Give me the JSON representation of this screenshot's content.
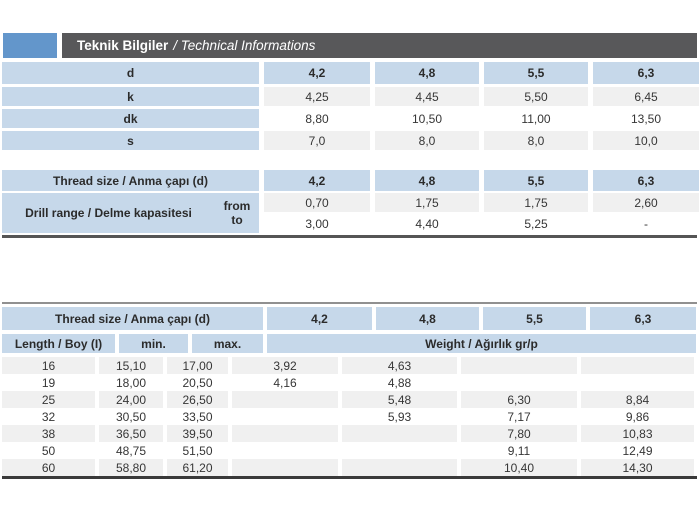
{
  "title": {
    "bold": "Teknik Bilgiler",
    "italic": "/ Technical Informations"
  },
  "colors": {
    "accent_blue": "#6396cb",
    "title_bar_gray": "#58585a",
    "cell_blue": "#c6d8ea",
    "stripe_gray": "#f0f0f0"
  },
  "spec_table": {
    "rows": [
      {
        "label": "d",
        "values": [
          "4,2",
          "4,8",
          "5,5",
          "6,3"
        ],
        "style": "header"
      },
      {
        "label": "k",
        "values": [
          "4,25",
          "4,45",
          "5,50",
          "6,45"
        ],
        "style": "gray"
      },
      {
        "label": "dk",
        "values": [
          "8,80",
          "10,50",
          "11,00",
          "13,50"
        ],
        "style": "white"
      },
      {
        "label": "s",
        "values": [
          "7,0",
          "8,0",
          "8,0",
          "10,0"
        ],
        "style": "gray"
      }
    ]
  },
  "drill_table": {
    "header_label": "Thread size / Anma çapı (d)",
    "header_values": [
      "4,2",
      "4,8",
      "5,5",
      "6,3"
    ],
    "row_label": "Drill range / Delme kapasitesi",
    "from_label": "from",
    "to_label": "to",
    "from_values": [
      "0,70",
      "1,75",
      "1,75",
      "2,60"
    ],
    "to_values": [
      "3,00",
      "4,40",
      "5,25",
      "-"
    ]
  },
  "length_table": {
    "header_label": "Thread size / Anma çapı (d)",
    "header_values": [
      "4,2",
      "4,8",
      "5,5",
      "6,3"
    ],
    "col_headers": {
      "length": "Length / Boy (I)",
      "min": "min.",
      "max": "max.",
      "weight": "Weight / Ağırlık gr/p"
    },
    "rows": [
      {
        "length": "16",
        "min": "15,10",
        "max": "17,00",
        "weights": [
          "3,92",
          "4,63",
          "",
          ""
        ]
      },
      {
        "length": "19",
        "min": "18,00",
        "max": "20,50",
        "weights": [
          "4,16",
          "4,88",
          "",
          ""
        ]
      },
      {
        "length": "25",
        "min": "24,00",
        "max": "26,50",
        "weights": [
          "",
          "5,48",
          "6,30",
          "8,84"
        ]
      },
      {
        "length": "32",
        "min": "30,50",
        "max": "33,50",
        "weights": [
          "",
          "5,93",
          "7,17",
          "9,86"
        ]
      },
      {
        "length": "38",
        "min": "36,50",
        "max": "39,50",
        "weights": [
          "",
          "",
          "7,80",
          "10,83"
        ]
      },
      {
        "length": "50",
        "min": "48,75",
        "max": "51,50",
        "weights": [
          "",
          "",
          "9,11",
          "12,49"
        ]
      },
      {
        "length": "60",
        "min": "58,80",
        "max": "61,20",
        "weights": [
          "",
          "",
          "10,40",
          "14,30"
        ]
      }
    ]
  }
}
